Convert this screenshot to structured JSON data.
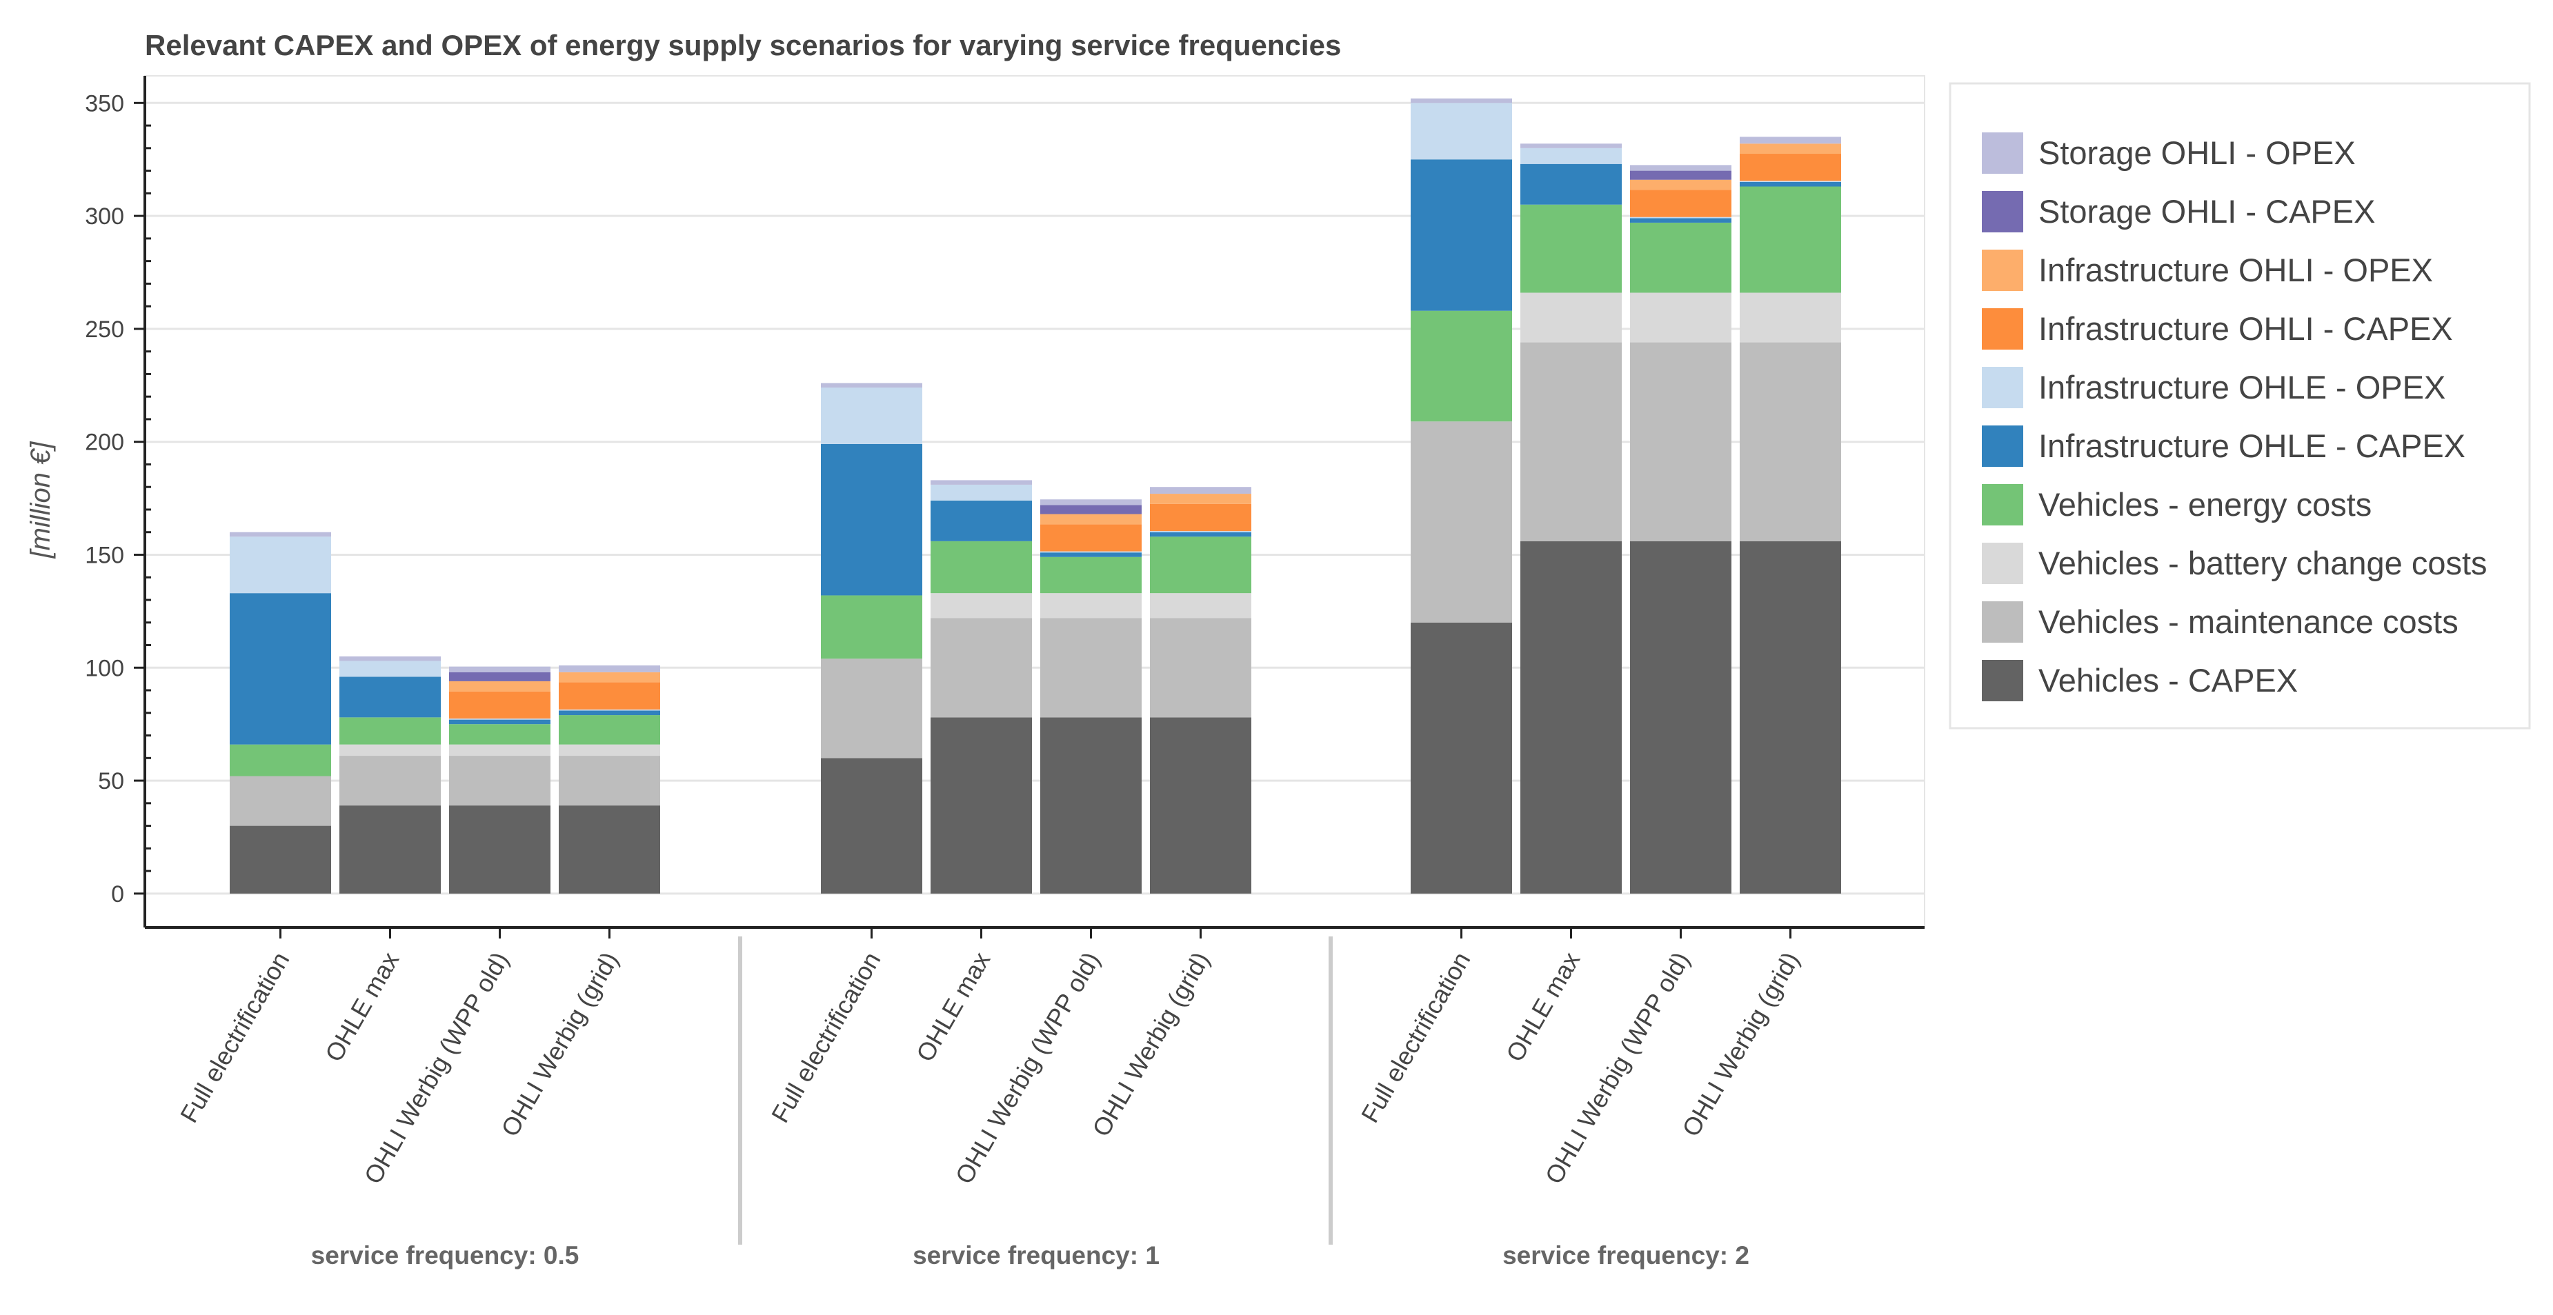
{
  "chart_data": {
    "type": "bar",
    "stacked": true,
    "title": "Relevant CAPEX and OPEX of energy supply scenarios for varying service frequencies",
    "ylabel": "[million €]",
    "xlabel": "",
    "ylim": [
      -15,
      362
    ],
    "yticks": [
      0,
      50,
      100,
      150,
      200,
      250,
      300,
      350
    ],
    "grid": true,
    "legend_position": "right",
    "groups": [
      {
        "label": "service frequency: 0.5"
      },
      {
        "label": "service frequency: 1"
      },
      {
        "label": "service frequency: 2"
      }
    ],
    "scenarios": [
      "Full electrification",
      "OHLE max",
      "OHLI Werbig (WPP old)",
      "OHLI Werbig (grid)"
    ],
    "series": [
      {
        "name": "Vehicles - CAPEX",
        "color": "#636363",
        "values": [
          [
            30,
            39,
            39,
            39
          ],
          [
            60,
            78,
            78,
            78
          ],
          [
            120,
            156,
            156,
            156
          ]
        ]
      },
      {
        "name": "Vehicles - maintenance costs",
        "color": "#bdbdbd",
        "values": [
          [
            22,
            22,
            22,
            22
          ],
          [
            44,
            44,
            44,
            44
          ],
          [
            89,
            88,
            88,
            88
          ]
        ]
      },
      {
        "name": "Vehicles - battery change costs",
        "color": "#d9d9d9",
        "values": [
          [
            0,
            5,
            5,
            5
          ],
          [
            0,
            11,
            11,
            11
          ],
          [
            0,
            22,
            22,
            22
          ]
        ]
      },
      {
        "name": "Vehicles - energy costs",
        "color": "#74c476",
        "values": [
          [
            14,
            12,
            9,
            13
          ],
          [
            28,
            23,
            16,
            25
          ],
          [
            49,
            39,
            31,
            47
          ]
        ]
      },
      {
        "name": "Infrastructure OHLE - CAPEX",
        "color": "#3182bd",
        "values": [
          [
            67,
            18,
            2,
            2
          ],
          [
            67,
            18,
            2,
            2
          ],
          [
            67,
            18,
            2,
            2
          ]
        ]
      },
      {
        "name": "Infrastructure OHLE - OPEX",
        "color": "#c6dbef",
        "values": [
          [
            25,
            7,
            0.5,
            0.5
          ],
          [
            25,
            7,
            0.5,
            0.5
          ],
          [
            25,
            7,
            0.5,
            0.5
          ]
        ]
      },
      {
        "name": "Infrastructure OHLI - CAPEX",
        "color": "#fd8d3c",
        "values": [
          [
            0,
            0,
            12,
            12
          ],
          [
            0,
            0,
            12,
            12
          ],
          [
            0,
            0,
            12,
            12
          ]
        ]
      },
      {
        "name": "Infrastructure OHLI - OPEX",
        "color": "#fdae6b",
        "values": [
          [
            0,
            0,
            4.5,
            4.5
          ],
          [
            0,
            0,
            4.5,
            4.5
          ],
          [
            0,
            0,
            4.5,
            4.5
          ]
        ]
      },
      {
        "name": "Storage OHLI - CAPEX",
        "color": "#756bb1",
        "values": [
          [
            0,
            0,
            4,
            0
          ],
          [
            0,
            0,
            4,
            0
          ],
          [
            0,
            0,
            4,
            0
          ]
        ]
      },
      {
        "name": "Storage OHLI - OPEX",
        "color": "#bcbddc",
        "values": [
          [
            2,
            2,
            2.5,
            3
          ],
          [
            2,
            2,
            2.5,
            3
          ],
          [
            2,
            2,
            2.5,
            3
          ]
        ]
      }
    ]
  }
}
